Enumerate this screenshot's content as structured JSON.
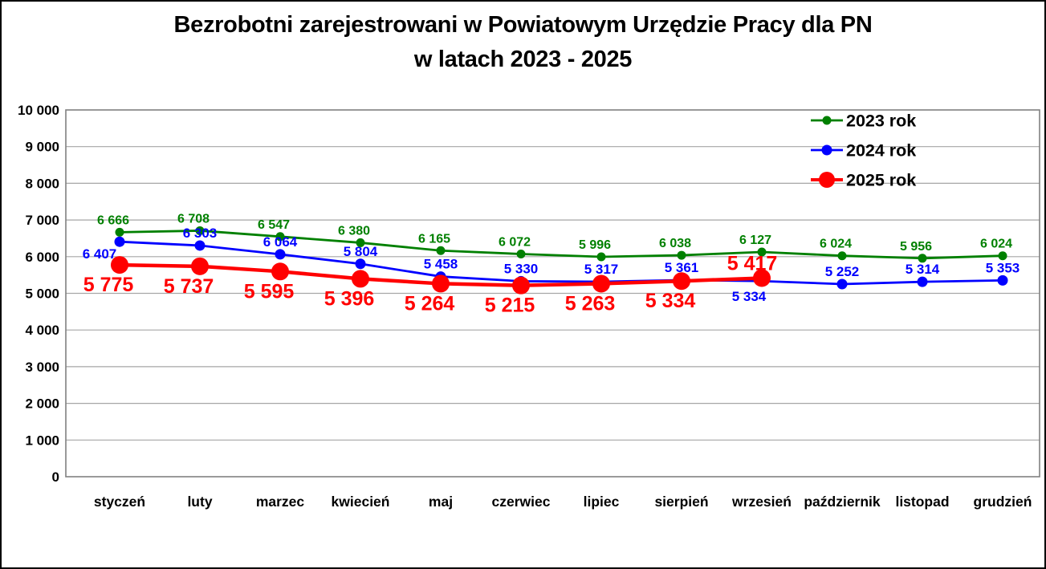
{
  "title": {
    "line1": "Bezrobotni zarejestrowani w Powiatowym Urzędzie Pracy dla PN",
    "line2": "w latach 2023 - 2025"
  },
  "chart_data": {
    "type": "line",
    "categories": [
      "styczeń",
      "luty",
      "marzec",
      "kwiecień",
      "maj",
      "czerwiec",
      "lipiec",
      "sierpień",
      "wrzesień",
      "październik",
      "listopad",
      "grudzień"
    ],
    "series": [
      {
        "name": "2023 rok",
        "color": "#008000",
        "values": [
          6666,
          6708,
          6547,
          6380,
          6165,
          6072,
          5996,
          6038,
          6127,
          6024,
          5956,
          6024
        ]
      },
      {
        "name": "2024 rok",
        "color": "#0000FF",
        "values": [
          6407,
          6303,
          6064,
          5804,
          5458,
          5330,
          5317,
          5361,
          5334,
          5252,
          5314,
          5353
        ]
      },
      {
        "name": "2025 rok",
        "color": "#FF0000",
        "values": [
          5775,
          5737,
          5595,
          5396,
          5264,
          5215,
          5263,
          5334,
          5417
        ]
      }
    ],
    "ylabel": "",
    "xlabel": "",
    "ylim": [
      0,
      10000
    ],
    "ytick_step": 1000,
    "ytick_labels": [
      "0",
      "1 000",
      "2 000",
      "3 000",
      "4 000",
      "5 000",
      "6 000",
      "7 000",
      "8 000",
      "9 000",
      "10 000"
    ],
    "grid": true,
    "legend_position": "top-right",
    "data_labels": true,
    "number_format": "space-thousands"
  },
  "colors": {
    "background": "#FFFFFF",
    "frame_border": "#000000",
    "plot_border": "#808080",
    "gridline": "#A6A6A6",
    "text": "#000000",
    "series_2023": "#008000",
    "series_2024": "#0000FF",
    "series_2025": "#FF0000"
  }
}
